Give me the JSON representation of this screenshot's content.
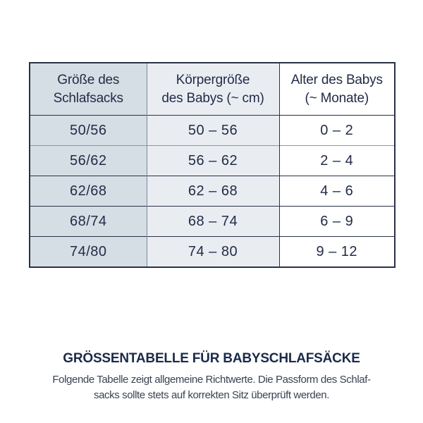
{
  "colors": {
    "col1_bg": "#d5dee5",
    "col2_bg": "#e9edf2",
    "col3_bg": "#ffffff",
    "border_navy": "#2a3145",
    "divider_gray": "#7e8896",
    "row_line_gray": "#8e959f",
    "text_navy": "#232c47",
    "heading_navy": "#1b2a4a",
    "body_text": "#3a4252"
  },
  "table": {
    "headers": [
      {
        "line1": "Größe des",
        "line2": "Schlafsacks"
      },
      {
        "line1": "Körpergröße",
        "line2": "des Babys (~ cm)"
      },
      {
        "line1": "Alter des Babys",
        "line2": "(~ Monate)"
      }
    ],
    "rows": [
      {
        "size": "50/56",
        "height": "50 – 56",
        "age": "0 – 2"
      },
      {
        "size": "56/62",
        "height": "56 – 62",
        "age": "2 – 4"
      },
      {
        "size": "62/68",
        "height": "62 – 68",
        "age": "4 – 6"
      },
      {
        "size": "68/74",
        "height": "68 – 74",
        "age": "6 – 9"
      },
      {
        "size": "74/80",
        "height": "74 – 80",
        "age": "9 – 12"
      }
    ]
  },
  "footer": {
    "heading": "GRÖSSENTABELLE FÜR BABYSCHLAFSÄCKE",
    "body_line1": "Folgende Tabelle zeigt allgemeine Richtwerte. Die Passform des Schlaf-",
    "body_line2": "sacks sollte stets auf korrekten Sitz überprüft werden."
  }
}
